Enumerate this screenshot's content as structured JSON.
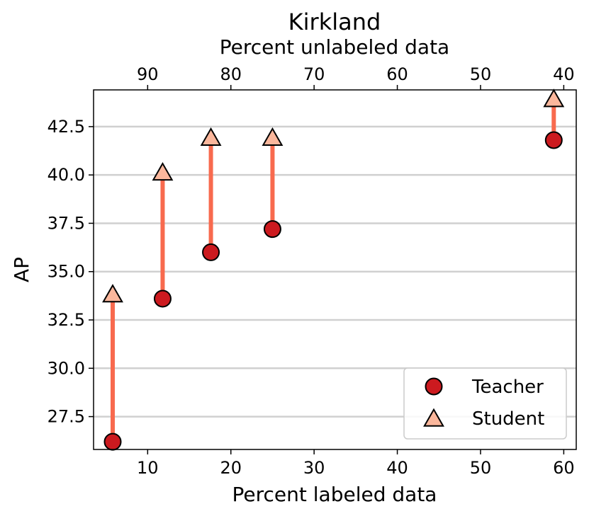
{
  "chart_data": {
    "type": "scatter",
    "title": "Kirkland",
    "xlabel": "Percent labeled data",
    "ylabel": "AP",
    "x2label": "Percent unlabeled data",
    "xlim": [
      3.5,
      61.5
    ],
    "ylim": [
      25.8,
      44.4
    ],
    "xticks": [
      10,
      20,
      30,
      40,
      50,
      60
    ],
    "yticks": [
      27.5,
      30.0,
      32.5,
      35.0,
      37.5,
      40.0,
      42.5
    ],
    "x2ticks": [
      90,
      80,
      70,
      60,
      50,
      40
    ],
    "grid": "horizontal",
    "legend_position": "lower-right",
    "series": [
      {
        "name": "Teacher",
        "marker": "circle",
        "color": "#cc1a1f",
        "x": [
          5.8,
          11.8,
          17.6,
          25.0,
          58.8
        ],
        "y": [
          26.2,
          33.6,
          36.0,
          37.2,
          41.8
        ]
      },
      {
        "name": "Student",
        "marker": "triangle",
        "color": "#fbb79c",
        "x": [
          5.8,
          11.8,
          17.6,
          25.0,
          58.8
        ],
        "y": [
          33.8,
          40.1,
          41.9,
          41.9,
          43.9
        ]
      }
    ],
    "arrow_color": "#f86a4e"
  }
}
